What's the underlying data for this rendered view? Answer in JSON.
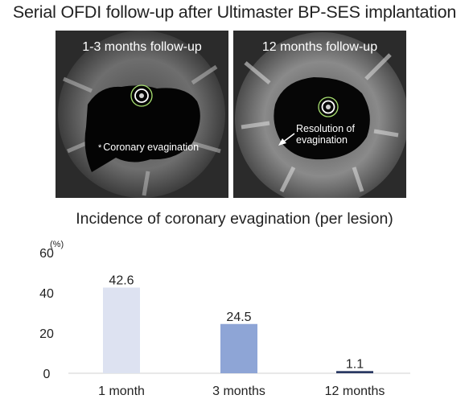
{
  "header": {
    "title": "Serial OFDI follow-up after Ultimaster BP-SES implantation"
  },
  "panels": [
    {
      "label": "1-3 months follow-up",
      "annotation_marker": "*",
      "annotation": "Coronary evagination"
    },
    {
      "label": "12 months follow-up",
      "annotation": "Resolution of evagination"
    }
  ],
  "chart_data": {
    "type": "bar",
    "title": "Incidence of coronary evagination (per lesion)",
    "categories": [
      "1 month",
      "3 months",
      "12 months"
    ],
    "values": [
      42.6,
      24.5,
      1.1
    ],
    "value_labels": [
      "42.6",
      "24.5",
      "1.1"
    ],
    "ylabel": "(%)",
    "ylim": [
      0,
      60
    ],
    "yticks": [
      0,
      20,
      40,
      60
    ],
    "grid": false,
    "colors": [
      "#dde2f1",
      "#8ea5d6",
      "#2b3a63"
    ],
    "axis_color": "#d0d0d0"
  }
}
